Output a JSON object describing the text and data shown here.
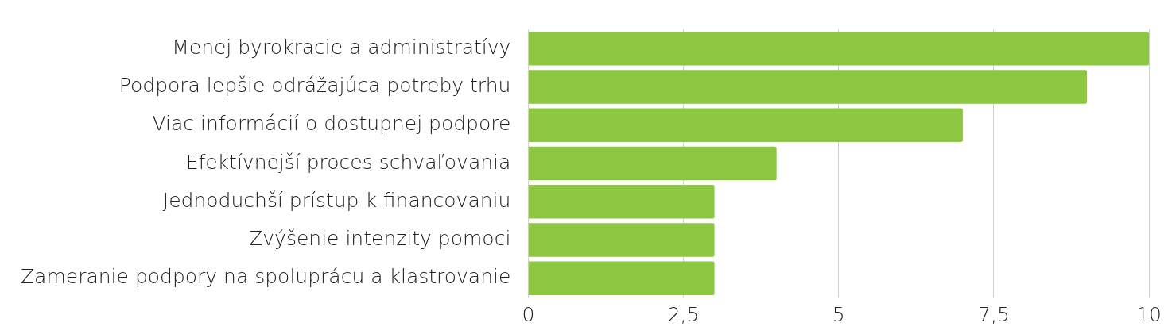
{
  "chart_data": {
    "type": "bar",
    "orientation": "horizontal",
    "categories": [
      "Menej byrokracie a administratívy",
      "Podpora lepšie odrážajúca potreby trhu",
      "Viac informácií o dostupnej podpore",
      "Efektívnejší proces schvaľovania",
      "Jednoduchší prístup k financovaniu",
      "Zvýšenie intenzity pomoci",
      "Zameranie podpory na spoluprácu a klastrovanie"
    ],
    "values": [
      10,
      9,
      7,
      4,
      3,
      3,
      3
    ],
    "color": "#8dc641",
    "xlim": [
      0,
      10
    ],
    "xticks": [
      0,
      {
        "value": 2.5,
        "label": "2,5"
      },
      5,
      {
        "value": 7.5,
        "label": "7,5"
      },
      10
    ],
    "grid": "x",
    "legend": false
  }
}
